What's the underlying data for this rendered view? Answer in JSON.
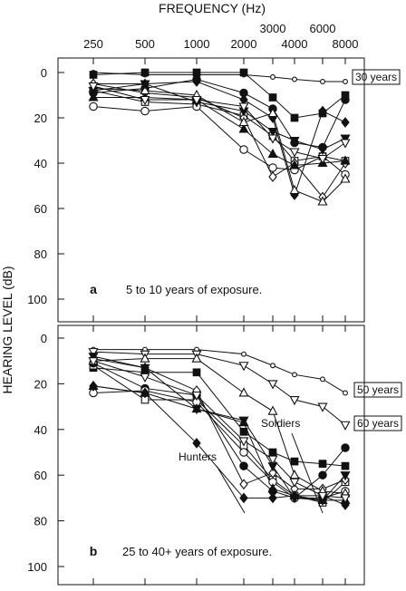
{
  "figure": {
    "top_label": "FREQUENCY (Hz)",
    "ylabel": "HEARING LEVEL (dB)",
    "x_ticks_upper": [
      "3000",
      "6000"
    ],
    "x_ticks_lower": [
      "250",
      "500",
      "1000",
      "2000",
      "4000",
      "8000"
    ]
  },
  "chart_data": [
    {
      "type": "line",
      "panel": "a",
      "caption": "5 to 10 years of exposure.",
      "ylim": [
        0,
        100
      ],
      "y_ticks": [
        0,
        20,
        40,
        60,
        80,
        100
      ],
      "x": [
        250,
        500,
        1000,
        2000,
        3000,
        4000,
        6000,
        8000
      ],
      "reference": [
        {
          "label": "30 years",
          "values": [
            0,
            1,
            1,
            1,
            2,
            3,
            4,
            4
          ]
        }
      ],
      "series": [
        {
          "marker": "filled-square",
          "values": [
            1,
            0,
            0,
            0,
            11,
            20,
            18,
            10
          ]
        },
        {
          "marker": "open-square",
          "values": [
            8,
            13,
            14,
            19,
            28,
            39,
            37,
            39
          ]
        },
        {
          "marker": "filled-circle",
          "values": [
            9,
            7,
            3,
            9,
            16,
            31,
            33,
            12
          ]
        },
        {
          "marker": "open-circle",
          "values": [
            15,
            17,
            15,
            34,
            42,
            43,
            37,
            45
          ]
        },
        {
          "marker": "filled-diamond",
          "values": [
            5,
            5,
            4,
            12,
            20,
            54,
            17,
            22
          ]
        },
        {
          "marker": "open-diamond",
          "values": [
            5,
            9,
            11,
            20,
            46,
            40,
            55,
            40
          ]
        },
        {
          "marker": "filled-triangle-up",
          "values": [
            11,
            11,
            12,
            25,
            36,
            41,
            40,
            39
          ]
        },
        {
          "marker": "open-triangle-up",
          "values": [
            7,
            8,
            10,
            22,
            18,
            52,
            57,
            47
          ]
        },
        {
          "marker": "filled-triangle-down",
          "values": [
            8,
            5,
            13,
            17,
            26,
            30,
            34,
            29
          ]
        },
        {
          "marker": "open-triangle-down",
          "values": [
            6,
            12,
            12,
            15,
            29,
            35,
            38,
            31
          ]
        }
      ]
    },
    {
      "type": "line",
      "panel": "b",
      "caption": "25 to 40+ years of exposure.",
      "ylim": [
        0,
        100
      ],
      "y_ticks": [
        0,
        20,
        40,
        60,
        80,
        100
      ],
      "x": [
        250,
        500,
        1000,
        2000,
        3000,
        4000,
        6000,
        8000
      ],
      "reference": [
        {
          "label": "50 years",
          "values": [
            5,
            5,
            5,
            7,
            12,
            16,
            18,
            24
          ]
        },
        {
          "label": "60 years",
          "values": [
            6,
            7,
            7,
            12,
            20,
            27,
            30,
            38
          ]
        }
      ],
      "annotations": [
        {
          "text": "Soldiers",
          "x": 4000,
          "y": 45
        },
        {
          "text": "Hunters",
          "x": 1000,
          "y": 56
        }
      ],
      "series": [
        {
          "marker": "filled-square",
          "values": [
            13,
            15,
            15,
            41,
            50,
            54,
            55,
            56
          ]
        },
        {
          "marker": "open-square",
          "values": [
            12,
            27,
            27,
            47,
            62,
            69,
            72,
            63
          ]
        },
        {
          "marker": "filled-circle",
          "values": [
            11,
            22,
            25,
            56,
            67,
            70,
            60,
            48
          ]
        },
        {
          "marker": "open-circle",
          "values": [
            24,
            23,
            28,
            50,
            63,
            70,
            70,
            67
          ]
        },
        {
          "marker": "filled-diamond",
          "values": [
            21,
            24,
            46,
            70,
            70,
            69,
            69,
            73
          ]
        },
        {
          "marker": "open-diamond",
          "values": [
            9,
            13,
            23,
            64,
            59,
            66,
            66,
            62
          ]
        },
        {
          "marker": "filled-triangle-up",
          "values": [
            21,
            24,
            31,
            37,
            66,
            69,
            71,
            71
          ]
        },
        {
          "marker": "open-triangle-up",
          "values": [
            10,
            9,
            9,
            24,
            32,
            60,
            67,
            68
          ]
        },
        {
          "marker": "filled-triangle-down",
          "values": [
            8,
            13,
            31,
            36,
            56,
            70,
            71,
            60
          ]
        },
        {
          "marker": "open-triangle-down",
          "values": [
            10,
            17,
            25,
            45,
            53,
            63,
            69,
            70
          ]
        }
      ]
    }
  ]
}
